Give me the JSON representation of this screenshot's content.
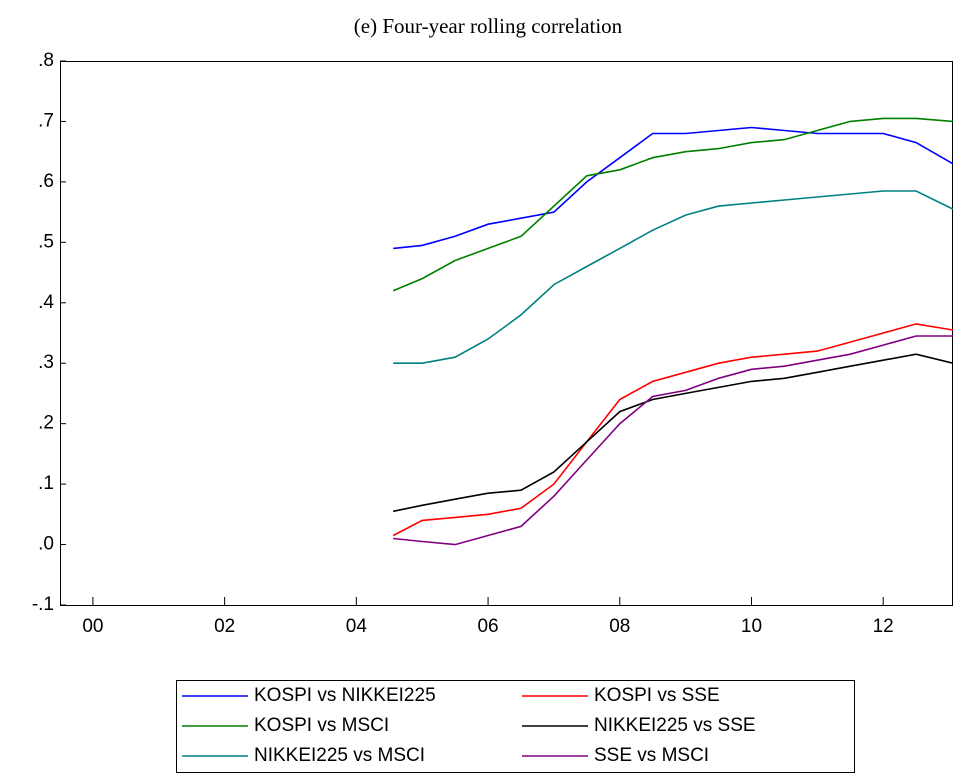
{
  "chart_data": {
    "type": "line",
    "title": "(e) Four-year rolling correlation",
    "x": [
      2005.06,
      2005.5,
      2006,
      2006.5,
      2007,
      2007.5,
      2008,
      2008.5,
      2009,
      2009.5,
      2010,
      2010.5,
      2011,
      2011.5,
      2012,
      2012.5,
      2013,
      2013.56
    ],
    "series": [
      {
        "name": "KOSPI vs NIKKEI225",
        "color": "#0000ff",
        "values": [
          0.49,
          0.495,
          0.51,
          0.53,
          0.54,
          0.55,
          0.6,
          0.64,
          0.68,
          0.68,
          0.685,
          0.69,
          0.685,
          0.68,
          0.68,
          0.68,
          0.665,
          0.63
        ]
      },
      {
        "name": "KOSPI vs SSE",
        "color": "#ff0000",
        "values": [
          0.015,
          0.04,
          0.045,
          0.05,
          0.06,
          0.1,
          0.17,
          0.24,
          0.27,
          0.285,
          0.3,
          0.31,
          0.315,
          0.32,
          0.335,
          0.35,
          0.365,
          0.355
        ]
      },
      {
        "name": "KOSPI vs MSCI",
        "color": "#008000",
        "values": [
          0.42,
          0.44,
          0.47,
          0.49,
          0.51,
          0.56,
          0.61,
          0.62,
          0.64,
          0.65,
          0.655,
          0.665,
          0.67,
          0.685,
          0.7,
          0.705,
          0.705,
          0.7
        ]
      },
      {
        "name": "NIKKEI225 vs SSE",
        "color": "#000000",
        "values": [
          0.055,
          0.065,
          0.075,
          0.085,
          0.09,
          0.12,
          0.17,
          0.22,
          0.24,
          0.25,
          0.26,
          0.27,
          0.275,
          0.285,
          0.295,
          0.305,
          0.315,
          0.3
        ]
      },
      {
        "name": "NIKKEI225 vs MSCI",
        "color": "#008080",
        "values": [
          0.3,
          0.3,
          0.31,
          0.34,
          0.38,
          0.43,
          0.46,
          0.49,
          0.52,
          0.545,
          0.56,
          0.565,
          0.57,
          0.575,
          0.58,
          0.585,
          0.585,
          0.555
        ]
      },
      {
        "name": "SSE vs MSCI",
        "color": "#800080",
        "values": [
          0.01,
          0.005,
          0.0,
          0.015,
          0.03,
          0.08,
          0.14,
          0.2,
          0.245,
          0.255,
          0.275,
          0.29,
          0.295,
          0.305,
          0.315,
          0.33,
          0.345,
          0.345
        ]
      }
    ],
    "xlim": [
      2000,
      2013.56
    ],
    "xticks": [
      {
        "value": 2000.5,
        "label": "00"
      },
      {
        "value": 2002.5,
        "label": "02"
      },
      {
        "value": 2004.5,
        "label": "04"
      },
      {
        "value": 2006.5,
        "label": "06"
      },
      {
        "value": 2008.5,
        "label": "08"
      },
      {
        "value": 2010.5,
        "label": "10"
      },
      {
        "value": 2012.5,
        "label": "12"
      }
    ],
    "ylim": [
      -0.1,
      0.8
    ],
    "yticks": [
      {
        "value": -0.1,
        "label": "-.1"
      },
      {
        "value": 0.0,
        "label": ".0"
      },
      {
        "value": 0.1,
        "label": ".1"
      },
      {
        "value": 0.2,
        "label": ".2"
      },
      {
        "value": 0.3,
        "label": ".3"
      },
      {
        "value": 0.4,
        "label": ".4"
      },
      {
        "value": 0.5,
        "label": ".5"
      },
      {
        "value": 0.6,
        "label": ".6"
      },
      {
        "value": 0.7,
        "label": ".7"
      },
      {
        "value": 0.8,
        "label": ".8"
      }
    ],
    "grid": false
  }
}
